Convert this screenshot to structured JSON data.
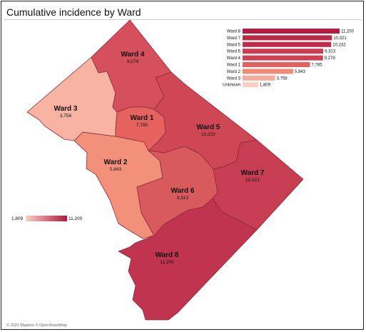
{
  "title": "Cumulative incidence by Ward",
  "credit": "© 2021 Mapbox © OpenStreetMap",
  "colors": {
    "ward1": "#e5625f",
    "ward2": "#f3907a",
    "ward3": "#f8b3a3",
    "ward4": "#d54f5c",
    "ward5": "#cf4655",
    "ward6": "#d85a5c",
    "ward7": "#c73d52",
    "ward8": "#c13450",
    "unknown": "#fcd3c8",
    "border": "#8a2b3c",
    "legend_low": "#fad0c4",
    "legend_high": "#b0183f"
  },
  "wards": [
    {
      "name": "Ward 1",
      "value": "7,785"
    },
    {
      "name": "Ward 2",
      "value": "5,843"
    },
    {
      "name": "Ward 3",
      "value": "3,758"
    },
    {
      "name": "Ward 4",
      "value": "9,279"
    },
    {
      "name": "Ward 5",
      "value": "10,232"
    },
    {
      "name": "Ward 6",
      "value": "9,313"
    },
    {
      "name": "Ward 7",
      "value": "10,321"
    },
    {
      "name": "Ward 8",
      "value": "11,200"
    }
  ],
  "bar_chart": {
    "max": 11200,
    "rows": [
      {
        "label": "Ward 8",
        "value": 11200,
        "text": "11,200",
        "color": "#b51c44"
      },
      {
        "label": "Ward 7",
        "value": 10321,
        "text": "10,321",
        "color": "#bd2847"
      },
      {
        "label": "Ward 5",
        "value": 10232,
        "text": "10,232",
        "color": "#c12b4a"
      },
      {
        "label": "Ward 6",
        "value": 9313,
        "text": "9,313",
        "color": "#cc3c52"
      },
      {
        "label": "Ward 4",
        "value": 9279,
        "text": "9,279",
        "color": "#cf4054"
      },
      {
        "label": "Ward 1",
        "value": 7785,
        "text": "7,785",
        "color": "#e0615e"
      },
      {
        "label": "Ward 2",
        "value": 5843,
        "text": "5,843",
        "color": "#ef8b77"
      },
      {
        "label": "Ward 3",
        "value": 3758,
        "text": "3,758",
        "color": "#f6ac9a"
      },
      {
        "label": "Unknown",
        "value": 1809,
        "text": "1,809",
        "color": "#fbcfc2"
      }
    ]
  },
  "legend": {
    "min_label": "1,809",
    "max_label": "11,200"
  }
}
